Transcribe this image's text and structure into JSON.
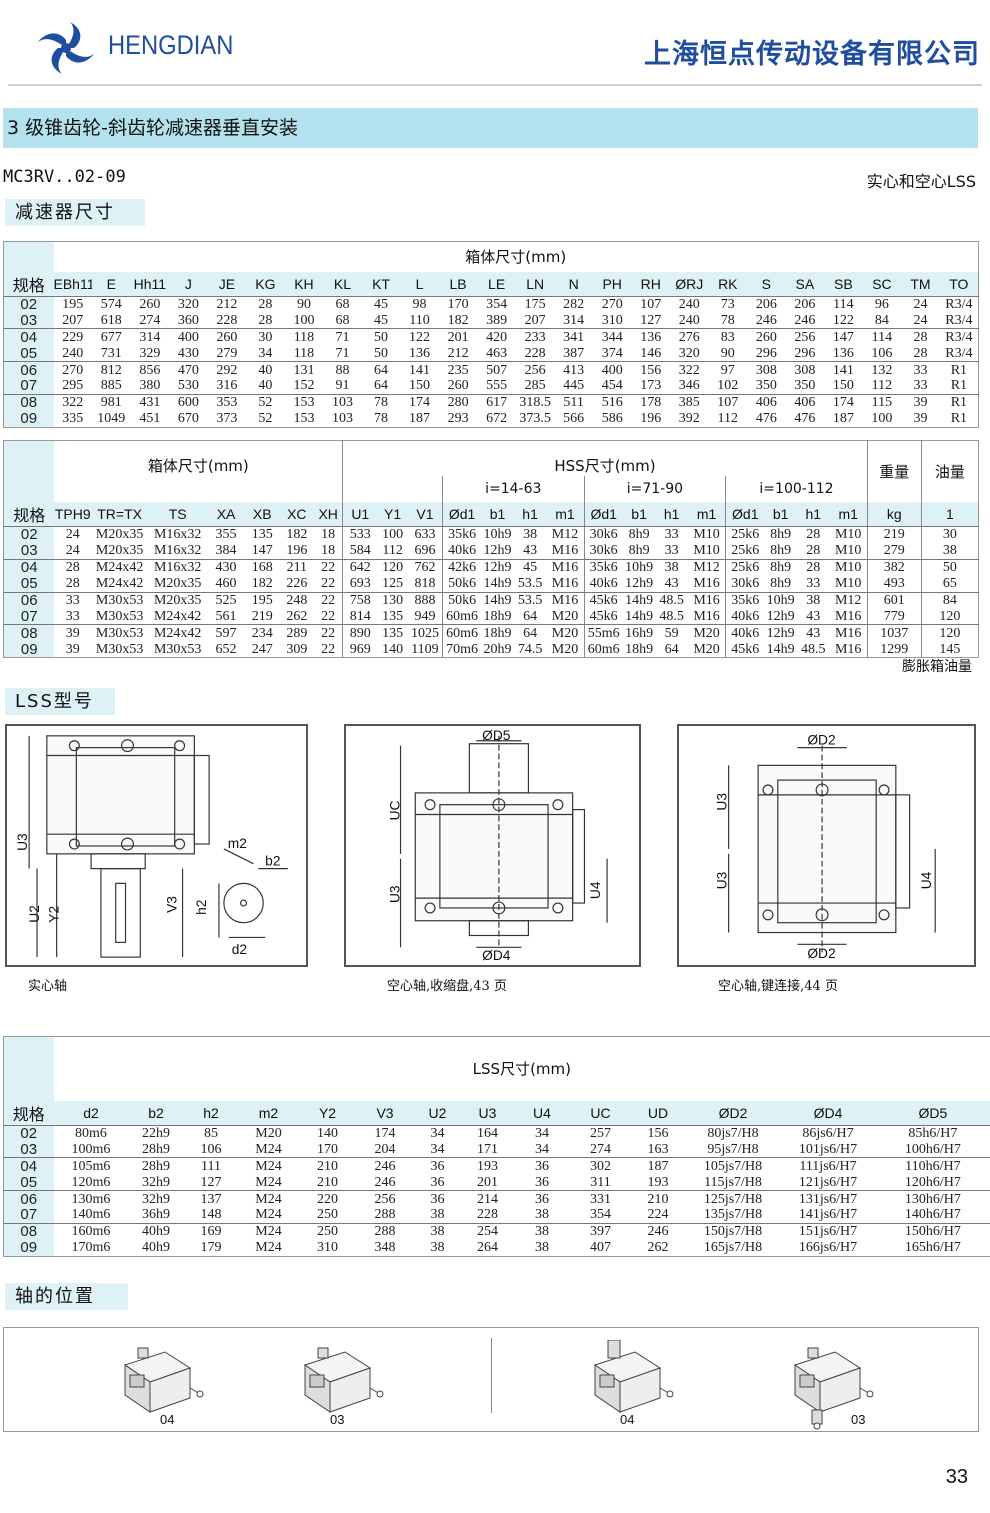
{
  "header": {
    "brand": "HENGDIAN",
    "company": "上海恒点传动设备有限公司",
    "brand_color": "#1f4e9e"
  },
  "title": "3 级锥齿轮-斜齿轮减速器垂直安装",
  "model": "MC3RV..02-09",
  "shaft_type": "实心和空心LSS",
  "sections": {
    "reducer_dims": "减速器尺寸",
    "lss_type": "LSS型号",
    "shaft_position": "轴的位置"
  },
  "table1": {
    "caption": "箱体尺寸(mm)",
    "size_header": "规格",
    "columns": [
      "EBh11",
      "E",
      "Hh11",
      "J",
      "JE",
      "KG",
      "KH",
      "KL",
      "KT",
      "L",
      "LB",
      "LE",
      "LN",
      "N",
      "PH",
      "RH",
      "ØRJ",
      "RK",
      "S",
      "SA",
      "SB",
      "SC",
      "TM",
      "TO"
    ],
    "rows": [
      [
        "02",
        "195",
        "574",
        "260",
        "320",
        "212",
        "28",
        "90",
        "68",
        "45",
        "98",
        "170",
        "354",
        "175",
        "282",
        "270",
        "107",
        "240",
        "73",
        "206",
        "206",
        "114",
        "96",
        "24",
        "R3/4"
      ],
      [
        "03",
        "207",
        "618",
        "274",
        "360",
        "228",
        "28",
        "100",
        "68",
        "45",
        "110",
        "182",
        "389",
        "207",
        "314",
        "310",
        "127",
        "240",
        "78",
        "246",
        "246",
        "122",
        "84",
        "24",
        "R3/4"
      ],
      [
        "04",
        "229",
        "677",
        "314",
        "400",
        "260",
        "30",
        "118",
        "71",
        "50",
        "122",
        "201",
        "420",
        "233",
        "341",
        "344",
        "136",
        "276",
        "83",
        "260",
        "256",
        "147",
        "114",
        "28",
        "R3/4"
      ],
      [
        "05",
        "240",
        "731",
        "329",
        "430",
        "279",
        "34",
        "118",
        "71",
        "50",
        "136",
        "212",
        "463",
        "228",
        "387",
        "374",
        "146",
        "320",
        "90",
        "296",
        "296",
        "136",
        "106",
        "28",
        "R3/4"
      ],
      [
        "06",
        "270",
        "812",
        "856",
        "470",
        "292",
        "40",
        "131",
        "88",
        "64",
        "141",
        "235",
        "507",
        "256",
        "413",
        "400",
        "156",
        "322",
        "97",
        "308",
        "308",
        "141",
        "132",
        "33",
        "R1"
      ],
      [
        "07",
        "295",
        "885",
        "380",
        "530",
        "316",
        "40",
        "152",
        "91",
        "64",
        "150",
        "260",
        "555",
        "285",
        "445",
        "454",
        "173",
        "346",
        "102",
        "350",
        "350",
        "150",
        "112",
        "33",
        "R1"
      ],
      [
        "08",
        "322",
        "981",
        "431",
        "600",
        "353",
        "52",
        "153",
        "103",
        "78",
        "174",
        "280",
        "617",
        "318.5",
        "511",
        "516",
        "178",
        "385",
        "107",
        "406",
        "406",
        "174",
        "115",
        "39",
        "R1"
      ],
      [
        "09",
        "335",
        "1049",
        "451",
        "670",
        "373",
        "52",
        "153",
        "103",
        "78",
        "187",
        "293",
        "672",
        "373.5",
        "566",
        "586",
        "196",
        "392",
        "112",
        "476",
        "476",
        "187",
        "100",
        "39",
        "R1"
      ]
    ]
  },
  "table2": {
    "caption_box": "箱体尺寸(mm)",
    "caption_hss": "HSS尺寸(mm)",
    "weight": "重量",
    "oil": "油量",
    "ratio_groups": [
      "i=14-63",
      "i=71-90",
      "i=100-112"
    ],
    "size_header": "规格",
    "columns": [
      "TPH9",
      "TR=TX",
      "TS",
      "XA",
      "XB",
      "XC",
      "XH",
      "U1",
      "Y1",
      "V1",
      "Ød1",
      "b1",
      "h1",
      "m1",
      "Ød1",
      "b1",
      "h1",
      "m1",
      "Ød1",
      "b1",
      "h1",
      "m1",
      "kg",
      "1"
    ],
    "rows": [
      [
        "02",
        "24",
        "M20x35",
        "M16x32",
        "355",
        "135",
        "182",
        "18",
        "533",
        "100",
        "633",
        "35k6",
        "10h9",
        "38",
        "M12",
        "30k6",
        "8h9",
        "33",
        "M10",
        "25k6",
        "8h9",
        "28",
        "M10",
        "219",
        "30"
      ],
      [
        "03",
        "24",
        "M20x35",
        "M16x32",
        "384",
        "147",
        "196",
        "18",
        "584",
        "112",
        "696",
        "40k6",
        "12h9",
        "43",
        "M16",
        "30k6",
        "8h9",
        "33",
        "M10",
        "25k6",
        "8h9",
        "28",
        "M10",
        "279",
        "38"
      ],
      [
        "04",
        "28",
        "M24x42",
        "M16x32",
        "430",
        "168",
        "211",
        "22",
        "642",
        "120",
        "762",
        "42k6",
        "12h9",
        "45",
        "M16",
        "35k6",
        "10h9",
        "38",
        "M12",
        "25k6",
        "8h9",
        "28",
        "M10",
        "382",
        "50"
      ],
      [
        "05",
        "28",
        "M24x42",
        "M20x35",
        "460",
        "182",
        "226",
        "22",
        "693",
        "125",
        "818",
        "50k6",
        "14h9",
        "53.5",
        "M16",
        "40k6",
        "12h9",
        "43",
        "M16",
        "30k6",
        "8h9",
        "33",
        "M10",
        "493",
        "65"
      ],
      [
        "06",
        "33",
        "M30x53",
        "M20x35",
        "525",
        "195",
        "248",
        "22",
        "758",
        "130",
        "888",
        "50k6",
        "14h9",
        "53.5",
        "M16",
        "45k6",
        "14h9",
        "48.5",
        "M16",
        "35k6",
        "10h9",
        "38",
        "M12",
        "601",
        "84"
      ],
      [
        "07",
        "33",
        "M30x53",
        "M24x42",
        "561",
        "219",
        "262",
        "22",
        "814",
        "135",
        "949",
        "60m6",
        "18h9",
        "64",
        "M20",
        "45k6",
        "14h9",
        "48.5",
        "M16",
        "40k6",
        "12h9",
        "43",
        "M16",
        "779",
        "120"
      ],
      [
        "08",
        "39",
        "M30x53",
        "M24x42",
        "597",
        "234",
        "289",
        "22",
        "890",
        "135",
        "1025",
        "60m6",
        "18h9",
        "64",
        "M20",
        "55m6",
        "16h9",
        "59",
        "M20",
        "40k6",
        "12h9",
        "43",
        "M16",
        "1037",
        "120"
      ],
      [
        "09",
        "39",
        "M30x53",
        "M30x53",
        "652",
        "247",
        "309",
        "22",
        "969",
        "140",
        "1109",
        "70m6",
        "20h9",
        "74.5",
        "M20",
        "60m6",
        "18h9",
        "64",
        "M20",
        "45k6",
        "14h9",
        "48.5",
        "M16",
        "1299",
        "145"
      ]
    ],
    "note": "膨胀箱油量"
  },
  "drawings": {
    "solid": {
      "labels": [
        "U3",
        "m2",
        "b2",
        "U2",
        "Y2",
        "V3",
        "h2",
        "d2"
      ],
      "caption": "实心轴"
    },
    "shrink": {
      "labels": [
        "ØD5",
        "UC",
        "U3",
        "U4",
        "ØD4"
      ],
      "caption": "空心轴,收缩盘,43 页"
    },
    "keyed": {
      "labels": [
        "ØD2",
        "U3",
        "U3",
        "U4",
        "ØD2"
      ],
      "caption": "空心轴,键连接,44 页"
    }
  },
  "table3": {
    "caption": "LSS尺寸(mm)",
    "size_header": "规格",
    "columns": [
      "d2",
      "b2",
      "h2",
      "m2",
      "Y2",
      "V3",
      "U2",
      "U3",
      "U4",
      "UC",
      "UD",
      "ØD2",
      "ØD4",
      "ØD5"
    ],
    "rows": [
      [
        "02",
        "80m6",
        "22h9",
        "85",
        "M20",
        "140",
        "174",
        "34",
        "164",
        "34",
        "257",
        "156",
        "80js7/H8",
        "86js6/H7",
        "85h6/H7"
      ],
      [
        "03",
        "100m6",
        "28h9",
        "106",
        "M24",
        "170",
        "204",
        "34",
        "171",
        "34",
        "274",
        "163",
        "95js7/H8",
        "101js6/H7",
        "100h6/H7"
      ],
      [
        "04",
        "105m6",
        "28h9",
        "111",
        "M24",
        "210",
        "246",
        "36",
        "193",
        "36",
        "302",
        "187",
        "105js7/H8",
        "111js6/H7",
        "110h6/H7"
      ],
      [
        "05",
        "120m6",
        "32h9",
        "127",
        "M24",
        "210",
        "246",
        "36",
        "201",
        "36",
        "311",
        "193",
        "115js7/H8",
        "121js6/H7",
        "120h6/H7"
      ],
      [
        "06",
        "130m6",
        "32h9",
        "137",
        "M24",
        "220",
        "256",
        "36",
        "214",
        "36",
        "331",
        "210",
        "125js7/H8",
        "131js6/H7",
        "130h6/H7"
      ],
      [
        "07",
        "140m6",
        "36h9",
        "148",
        "M24",
        "250",
        "288",
        "38",
        "228",
        "38",
        "354",
        "224",
        "135js7/H8",
        "141js6/H7",
        "140h6/H7"
      ],
      [
        "08",
        "160m6",
        "40h9",
        "169",
        "M24",
        "250",
        "288",
        "38",
        "254",
        "38",
        "397",
        "246",
        "150js7/H8",
        "151js6/H7",
        "150h6/H7"
      ],
      [
        "09",
        "170m6",
        "40h9",
        "179",
        "M24",
        "310",
        "348",
        "38",
        "264",
        "38",
        "407",
        "262",
        "165js7/H8",
        "166js6/H7",
        "165h6/H7"
      ]
    ]
  },
  "positions": [
    "04",
    "03",
    "04",
    "03"
  ],
  "page_number": "33",
  "colors": {
    "title_bar": "#b4e1ee",
    "header_cells": "#ddf1f7"
  }
}
